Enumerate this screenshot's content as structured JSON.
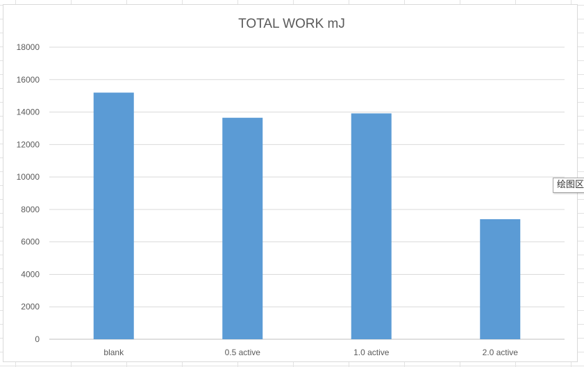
{
  "colors": {
    "bar": "#5B9BD5",
    "grid": "#D9D9D9",
    "text": "#595959"
  },
  "tooltip": {
    "text": "绘图区"
  },
  "chart_data": {
    "type": "bar",
    "title": "TOTAL WORK mJ",
    "xlabel": "",
    "ylabel": "",
    "categories": [
      "blank",
      "0.5 active",
      "1.0 active",
      "2.0 active"
    ],
    "values": [
      15200,
      13650,
      13920,
      7400
    ],
    "ylim": [
      0,
      18000
    ],
    "yticks": [
      "0",
      "2000",
      "4000",
      "6000",
      "8000",
      "10000",
      "12000",
      "14000",
      "16000",
      "18000"
    ],
    "grid": true,
    "legend": "none"
  }
}
